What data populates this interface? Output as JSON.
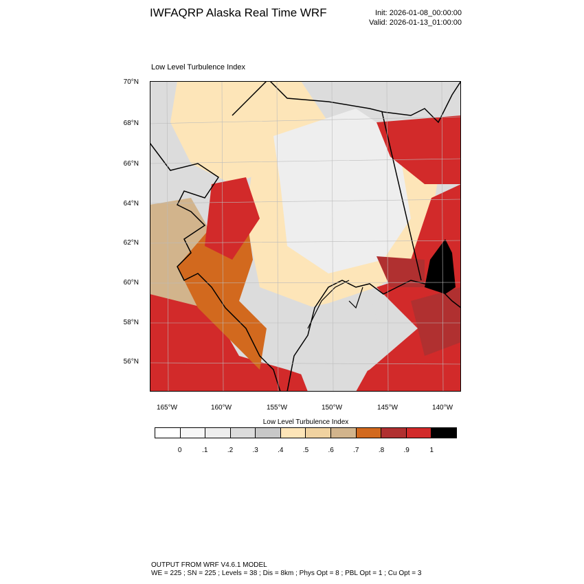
{
  "header": {
    "title": "IWFAQRP Alaska Real Time WRF",
    "init": "Init: 2026-01-08_00:00:00",
    "valid": "Valid: 2026-01-13_01:00:00"
  },
  "plot": {
    "title": "Low Level Turbulence Index",
    "lat_labels": [
      "70°N",
      "68°N",
      "66°N",
      "64°N",
      "62°N",
      "60°N",
      "58°N",
      "56°N"
    ],
    "lon_labels": [
      "165°W",
      "160°W",
      "155°W",
      "150°W",
      "145°W",
      "140°W"
    ]
  },
  "colorbar": {
    "title": "Low Level Turbulence Index",
    "colors": [
      "#ffffff",
      "#f7f7f7",
      "#eeeeee",
      "#dcdcdc",
      "#c8c8c8",
      "#fde5b8",
      "#f0d2a0",
      "#d2b48c",
      "#d2691e",
      "#b03030",
      "#d22a2a",
      "#000000"
    ],
    "labels": [
      "0",
      ".1",
      ".2",
      ".3",
      ".4",
      ".5",
      ".6",
      ".7",
      ".8",
      ".9",
      "1"
    ]
  },
  "footer": {
    "line1": "OUTPUT FROM WRF V4.6.1 MODEL",
    "line2": "WE = 225 ; SN = 225 ; Levels = 38 ; Dis = 8km ; Phys Opt = 8 ; PBL Opt = 1 ; Cu Opt = 3"
  }
}
